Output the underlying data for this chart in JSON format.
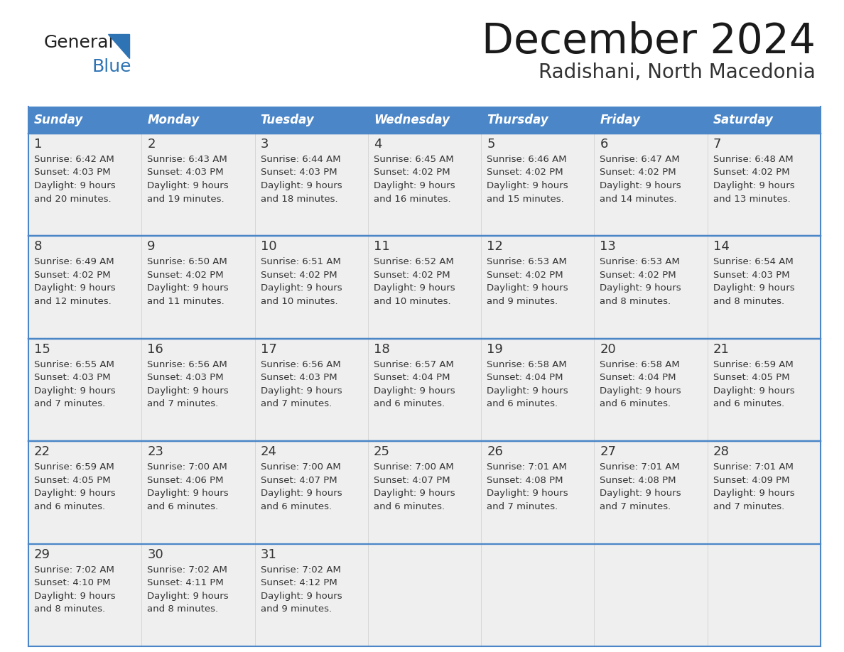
{
  "title": "December 2024",
  "subtitle": "Radishani, North Macedonia",
  "days_of_week": [
    "Sunday",
    "Monday",
    "Tuesday",
    "Wednesday",
    "Thursday",
    "Friday",
    "Saturday"
  ],
  "header_bg": "#4A86C8",
  "header_text": "#FFFFFF",
  "row_bg": "#EFEFEF",
  "cell_text_color": "#333333",
  "day_num_color": "#333333",
  "border_color": "#4A86C8",
  "weeks": [
    [
      {
        "day": 1,
        "sunrise": "6:42 AM",
        "sunset": "4:03 PM",
        "daylight": "9 hours",
        "daylight2": "and 20 minutes."
      },
      {
        "day": 2,
        "sunrise": "6:43 AM",
        "sunset": "4:03 PM",
        "daylight": "9 hours",
        "daylight2": "and 19 minutes."
      },
      {
        "day": 3,
        "sunrise": "6:44 AM",
        "sunset": "4:03 PM",
        "daylight": "9 hours",
        "daylight2": "and 18 minutes."
      },
      {
        "day": 4,
        "sunrise": "6:45 AM",
        "sunset": "4:02 PM",
        "daylight": "9 hours",
        "daylight2": "and 16 minutes."
      },
      {
        "day": 5,
        "sunrise": "6:46 AM",
        "sunset": "4:02 PM",
        "daylight": "9 hours",
        "daylight2": "and 15 minutes."
      },
      {
        "day": 6,
        "sunrise": "6:47 AM",
        "sunset": "4:02 PM",
        "daylight": "9 hours",
        "daylight2": "and 14 minutes."
      },
      {
        "day": 7,
        "sunrise": "6:48 AM",
        "sunset": "4:02 PM",
        "daylight": "9 hours",
        "daylight2": "and 13 minutes."
      }
    ],
    [
      {
        "day": 8,
        "sunrise": "6:49 AM",
        "sunset": "4:02 PM",
        "daylight": "9 hours",
        "daylight2": "and 12 minutes."
      },
      {
        "day": 9,
        "sunrise": "6:50 AM",
        "sunset": "4:02 PM",
        "daylight": "9 hours",
        "daylight2": "and 11 minutes."
      },
      {
        "day": 10,
        "sunrise": "6:51 AM",
        "sunset": "4:02 PM",
        "daylight": "9 hours",
        "daylight2": "and 10 minutes."
      },
      {
        "day": 11,
        "sunrise": "6:52 AM",
        "sunset": "4:02 PM",
        "daylight": "9 hours",
        "daylight2": "and 10 minutes."
      },
      {
        "day": 12,
        "sunrise": "6:53 AM",
        "sunset": "4:02 PM",
        "daylight": "9 hours",
        "daylight2": "and 9 minutes."
      },
      {
        "day": 13,
        "sunrise": "6:53 AM",
        "sunset": "4:02 PM",
        "daylight": "9 hours",
        "daylight2": "and 8 minutes."
      },
      {
        "day": 14,
        "sunrise": "6:54 AM",
        "sunset": "4:03 PM",
        "daylight": "9 hours",
        "daylight2": "and 8 minutes."
      }
    ],
    [
      {
        "day": 15,
        "sunrise": "6:55 AM",
        "sunset": "4:03 PM",
        "daylight": "9 hours",
        "daylight2": "and 7 minutes."
      },
      {
        "day": 16,
        "sunrise": "6:56 AM",
        "sunset": "4:03 PM",
        "daylight": "9 hours",
        "daylight2": "and 7 minutes."
      },
      {
        "day": 17,
        "sunrise": "6:56 AM",
        "sunset": "4:03 PM",
        "daylight": "9 hours",
        "daylight2": "and 7 minutes."
      },
      {
        "day": 18,
        "sunrise": "6:57 AM",
        "sunset": "4:04 PM",
        "daylight": "9 hours",
        "daylight2": "and 6 minutes."
      },
      {
        "day": 19,
        "sunrise": "6:58 AM",
        "sunset": "4:04 PM",
        "daylight": "9 hours",
        "daylight2": "and 6 minutes."
      },
      {
        "day": 20,
        "sunrise": "6:58 AM",
        "sunset": "4:04 PM",
        "daylight": "9 hours",
        "daylight2": "and 6 minutes."
      },
      {
        "day": 21,
        "sunrise": "6:59 AM",
        "sunset": "4:05 PM",
        "daylight": "9 hours",
        "daylight2": "and 6 minutes."
      }
    ],
    [
      {
        "day": 22,
        "sunrise": "6:59 AM",
        "sunset": "4:05 PM",
        "daylight": "9 hours",
        "daylight2": "and 6 minutes."
      },
      {
        "day": 23,
        "sunrise": "7:00 AM",
        "sunset": "4:06 PM",
        "daylight": "9 hours",
        "daylight2": "and 6 minutes."
      },
      {
        "day": 24,
        "sunrise": "7:00 AM",
        "sunset": "4:07 PM",
        "daylight": "9 hours",
        "daylight2": "and 6 minutes."
      },
      {
        "day": 25,
        "sunrise": "7:00 AM",
        "sunset": "4:07 PM",
        "daylight": "9 hours",
        "daylight2": "and 6 minutes."
      },
      {
        "day": 26,
        "sunrise": "7:01 AM",
        "sunset": "4:08 PM",
        "daylight": "9 hours",
        "daylight2": "and 7 minutes."
      },
      {
        "day": 27,
        "sunrise": "7:01 AM",
        "sunset": "4:08 PM",
        "daylight": "9 hours",
        "daylight2": "and 7 minutes."
      },
      {
        "day": 28,
        "sunrise": "7:01 AM",
        "sunset": "4:09 PM",
        "daylight": "9 hours",
        "daylight2": "and 7 minutes."
      }
    ],
    [
      {
        "day": 29,
        "sunrise": "7:02 AM",
        "sunset": "4:10 PM",
        "daylight": "9 hours",
        "daylight2": "and 8 minutes."
      },
      {
        "day": 30,
        "sunrise": "7:02 AM",
        "sunset": "4:11 PM",
        "daylight": "9 hours",
        "daylight2": "and 8 minutes."
      },
      {
        "day": 31,
        "sunrise": "7:02 AM",
        "sunset": "4:12 PM",
        "daylight": "9 hours",
        "daylight2": "and 9 minutes."
      },
      null,
      null,
      null,
      null
    ]
  ],
  "logo_general_color": "#222222",
  "logo_blue_color": "#2E74B5",
  "logo_triangle_color": "#2E74B5"
}
